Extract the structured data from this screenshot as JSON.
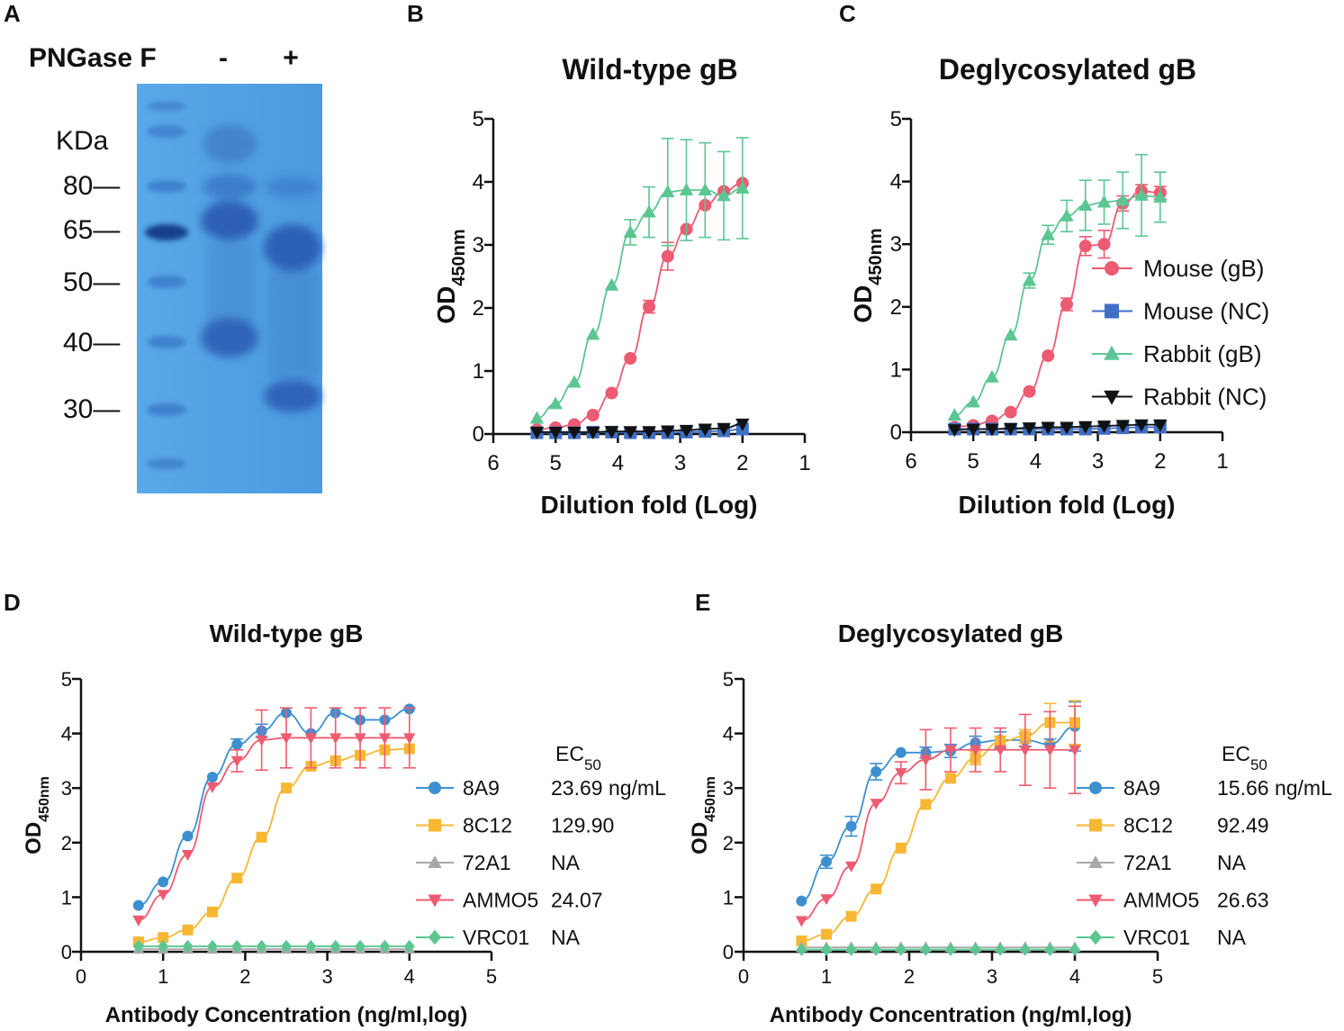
{
  "colors": {
    "mouse_gb": "#ec5b72",
    "mouse_nc": "#3f6fc4",
    "rabbit_gb": "#5cc693",
    "rabbit_nc": "#111111",
    "c8A9": "#3d8fcf",
    "c8C12": "#f7b733",
    "c72A1": "#a8a8a8",
    "cAMMO5": "#ee5b70",
    "cVRC01": "#5cc693",
    "gel_bg": "#4f9fe2"
  },
  "panels": {
    "A": {
      "letter": "A",
      "enzyme_label": "PNGase F",
      "lane_minus": "-",
      "lane_plus": "+",
      "unit": "KDa",
      "markers": [
        "80—",
        "65—",
        "50—",
        "40—",
        "30—"
      ]
    },
    "B": {
      "letter": "B"
    },
    "C": {
      "letter": "C"
    },
    "D": {
      "letter": "D",
      "ec50_header": "EC",
      "ec50_sub": "50"
    },
    "E": {
      "letter": "E",
      "ec50_header": "EC",
      "ec50_sub": "50"
    }
  },
  "legend_bc": [
    "Mouse (gB)",
    "Mouse (NC)",
    "Rabbit (gB)",
    "Rabbit (NC)"
  ],
  "legend_d": [
    {
      "name": "8A9",
      "ec50": "23.69 ng/mL"
    },
    {
      "name": "8C12",
      "ec50": "129.90"
    },
    {
      "name": "72A1",
      "ec50": "NA"
    },
    {
      "name": "AMMO5",
      "ec50": "24.07"
    },
    {
      "name": "VRC01",
      "ec50": "NA"
    }
  ],
  "legend_e": [
    {
      "name": "8A9",
      "ec50": "15.66 ng/mL"
    },
    {
      "name": "8C12",
      "ec50": "92.49"
    },
    {
      "name": "72A1",
      "ec50": "NA"
    },
    {
      "name": "AMMO5",
      "ec50": "26.63"
    },
    {
      "name": "VRC01",
      "ec50": "NA"
    }
  ],
  "chart_data": [
    {
      "panel": "B",
      "type": "line",
      "title": "Wild-type gB",
      "xlabel": "Dilution fold (Log)",
      "ylabel": "OD",
      "ylabel_sub": "450nm",
      "xlim": [
        6,
        1
      ],
      "ylim": [
        0,
        5
      ],
      "xticks": [
        6,
        5,
        4,
        3,
        2,
        1
      ],
      "yticks": [
        0,
        1,
        2,
        3,
        4,
        5
      ],
      "series": [
        {
          "name": "Mouse (gB)",
          "marker": "circle",
          "x": [
            5.3,
            5.0,
            4.7,
            4.4,
            4.1,
            3.8,
            3.5,
            3.2,
            2.9,
            2.6,
            2.3,
            2.0
          ],
          "y": [
            0.07,
            0.1,
            0.15,
            0.3,
            0.65,
            1.2,
            2.02,
            2.82,
            3.25,
            3.63,
            3.85,
            3.98
          ],
          "err": [
            0,
            0,
            0,
            0,
            0,
            0,
            0.1,
            0.22,
            0,
            0,
            0,
            0
          ]
        },
        {
          "name": "Mouse (NC)",
          "marker": "square",
          "x": [
            5.3,
            5.0,
            4.7,
            4.4,
            4.1,
            3.8,
            3.5,
            3.2,
            2.9,
            2.6,
            2.3,
            2.0
          ],
          "y": [
            0.02,
            0.02,
            0.02,
            0.03,
            0.03,
            0.02,
            0.02,
            0.02,
            0.03,
            0.04,
            0.05,
            0.08
          ],
          "err": [
            0,
            0,
            0,
            0,
            0,
            0,
            0,
            0,
            0,
            0,
            0,
            0
          ]
        },
        {
          "name": "Rabbit (gB)",
          "marker": "triangle-up",
          "x": [
            5.3,
            5.0,
            4.7,
            4.4,
            4.1,
            3.8,
            3.5,
            3.2,
            2.9,
            2.6,
            2.3,
            2.0
          ],
          "y": [
            0.25,
            0.48,
            0.82,
            1.58,
            2.36,
            3.2,
            3.52,
            3.84,
            3.87,
            3.87,
            3.78,
            3.9
          ],
          "err": [
            0,
            0,
            0,
            0,
            0,
            0.2,
            0.4,
            0.85,
            0.8,
            0.75,
            0.7,
            0.8
          ]
        },
        {
          "name": "Rabbit (NC)",
          "marker": "triangle-down",
          "x": [
            5.3,
            5.0,
            4.7,
            4.4,
            4.1,
            3.8,
            3.5,
            3.2,
            2.9,
            2.6,
            2.3,
            2.0
          ],
          "y": [
            0.03,
            0.03,
            0.03,
            0.03,
            0.04,
            0.04,
            0.04,
            0.05,
            0.06,
            0.08,
            0.09,
            0.16
          ],
          "err": [
            0,
            0,
            0,
            0,
            0,
            0,
            0,
            0,
            0,
            0,
            0,
            0
          ]
        }
      ]
    },
    {
      "panel": "C",
      "type": "line",
      "title": "Deglycosylated gB",
      "xlabel": "Dilution fold (Log)",
      "ylabel": "OD",
      "ylabel_sub": "450nm",
      "xlim": [
        6,
        1
      ],
      "ylim": [
        0,
        5
      ],
      "xticks": [
        6,
        5,
        4,
        3,
        2,
        1
      ],
      "yticks": [
        0,
        1,
        2,
        3,
        4,
        5
      ],
      "series": [
        {
          "name": "Mouse (gB)",
          "marker": "circle",
          "x": [
            5.3,
            5.0,
            4.7,
            4.4,
            4.1,
            3.8,
            3.5,
            3.2,
            2.9,
            2.6,
            2.3,
            2.0
          ],
          "y": [
            0.08,
            0.11,
            0.18,
            0.32,
            0.65,
            1.22,
            2.04,
            2.97,
            3.0,
            3.65,
            3.85,
            3.82
          ],
          "err": [
            0,
            0,
            0,
            0,
            0,
            0,
            0.1,
            0.15,
            0.22,
            0.12,
            0.1,
            0.1
          ]
        },
        {
          "name": "Mouse (NC)",
          "marker": "square",
          "x": [
            5.3,
            5.0,
            4.7,
            4.4,
            4.1,
            3.8,
            3.5,
            3.2,
            2.9,
            2.6,
            2.3,
            2.0
          ],
          "y": [
            0.05,
            0.05,
            0.05,
            0.05,
            0.05,
            0.05,
            0.05,
            0.05,
            0.06,
            0.07,
            0.08,
            0.08
          ],
          "err": [
            0,
            0,
            0,
            0,
            0,
            0,
            0,
            0,
            0,
            0,
            0,
            0
          ]
        },
        {
          "name": "Rabbit (gB)",
          "marker": "triangle-up",
          "x": [
            5.3,
            5.0,
            4.7,
            4.4,
            4.1,
            3.8,
            3.5,
            3.2,
            2.9,
            2.6,
            2.3,
            2.0
          ],
          "y": [
            0.27,
            0.48,
            0.88,
            1.55,
            2.42,
            3.15,
            3.45,
            3.62,
            3.67,
            3.7,
            3.78,
            3.75
          ],
          "err": [
            0,
            0,
            0,
            0,
            0.12,
            0.15,
            0.25,
            0.4,
            0.35,
            0.45,
            0.65,
            0.4
          ]
        },
        {
          "name": "Rabbit (NC)",
          "marker": "triangle-down",
          "x": [
            5.3,
            5.0,
            4.7,
            4.4,
            4.1,
            3.8,
            3.5,
            3.2,
            2.9,
            2.6,
            2.3,
            2.0
          ],
          "y": [
            0.04,
            0.05,
            0.05,
            0.06,
            0.07,
            0.08,
            0.08,
            0.09,
            0.1,
            0.11,
            0.12,
            0.12
          ],
          "err": [
            0,
            0,
            0,
            0,
            0,
            0,
            0,
            0,
            0,
            0,
            0,
            0
          ]
        }
      ]
    },
    {
      "panel": "D",
      "type": "line",
      "title": "Wild-type gB",
      "xlabel": "Antibody Concentration (ng/ml,log)",
      "ylabel": "OD",
      "ylabel_sub": "450nm",
      "xlim": [
        0,
        5
      ],
      "ylim": [
        0,
        5
      ],
      "xticks": [
        0,
        1,
        2,
        3,
        4,
        5
      ],
      "yticks": [
        0,
        1,
        2,
        3,
        4,
        5
      ],
      "series": [
        {
          "name": "8A9",
          "marker": "circle",
          "x": [
            0.7,
            1.0,
            1.3,
            1.6,
            1.9,
            2.2,
            2.5,
            2.8,
            3.1,
            3.4,
            3.7,
            4.0
          ],
          "y": [
            0.85,
            1.28,
            2.12,
            3.2,
            3.8,
            4.05,
            4.38,
            4.0,
            4.38,
            4.25,
            4.25,
            4.45
          ],
          "err": [
            0,
            0,
            0,
            0,
            0.1,
            0.12,
            0,
            0,
            0,
            0,
            0,
            0
          ]
        },
        {
          "name": "8C12",
          "marker": "square",
          "x": [
            0.7,
            1.0,
            1.3,
            1.6,
            1.9,
            2.2,
            2.5,
            2.8,
            3.1,
            3.4,
            3.7,
            4.0
          ],
          "y": [
            0.18,
            0.26,
            0.4,
            0.73,
            1.35,
            2.1,
            3.0,
            3.4,
            3.5,
            3.6,
            3.7,
            3.72
          ],
          "err": [
            0,
            0,
            0,
            0,
            0,
            0,
            0,
            0,
            0,
            0,
            0,
            0
          ]
        },
        {
          "name": "72A1",
          "marker": "triangle-up",
          "x": [
            0.7,
            1.0,
            1.3,
            1.6,
            1.9,
            2.2,
            2.5,
            2.8,
            3.1,
            3.4,
            3.7,
            4.0
          ],
          "y": [
            0.05,
            0.05,
            0.05,
            0.05,
            0.05,
            0.05,
            0.05,
            0.05,
            0.05,
            0.05,
            0.05,
            0.05
          ],
          "err": [
            0,
            0,
            0,
            0,
            0,
            0,
            0,
            0,
            0,
            0,
            0,
            0
          ]
        },
        {
          "name": "AMMO5",
          "marker": "triangle-down",
          "x": [
            0.7,
            1.0,
            1.3,
            1.6,
            1.9,
            2.2,
            2.5,
            2.8,
            3.1,
            3.4,
            3.7,
            4.0
          ],
          "y": [
            0.58,
            1.05,
            1.78,
            3.02,
            3.5,
            3.88,
            3.92,
            3.92,
            3.92,
            3.92,
            3.92,
            3.92
          ],
          "err": [
            0,
            0,
            0,
            0,
            0.2,
            0.55,
            0.55,
            0.55,
            0.55,
            0.55,
            0.55,
            0.55
          ]
        },
        {
          "name": "VRC01",
          "marker": "diamond",
          "x": [
            0.7,
            1.0,
            1.3,
            1.6,
            1.9,
            2.2,
            2.5,
            2.8,
            3.1,
            3.4,
            3.7,
            4.0
          ],
          "y": [
            0.1,
            0.1,
            0.1,
            0.1,
            0.1,
            0.1,
            0.1,
            0.1,
            0.1,
            0.1,
            0.1,
            0.1
          ],
          "err": [
            0,
            0,
            0,
            0,
            0,
            0,
            0,
            0,
            0,
            0,
            0,
            0
          ]
        }
      ]
    },
    {
      "panel": "E",
      "type": "line",
      "title": "Deglycosylated gB",
      "xlabel": "Antibody Concentration (ng/ml,log)",
      "ylabel": "OD",
      "ylabel_sub": "450nm",
      "xlim": [
        0,
        5
      ],
      "ylim": [
        0,
        5
      ],
      "xticks": [
        0,
        1,
        2,
        3,
        4,
        5
      ],
      "yticks": [
        0,
        1,
        2,
        3,
        4,
        5
      ],
      "series": [
        {
          "name": "8A9",
          "marker": "circle",
          "x": [
            0.7,
            1.0,
            1.3,
            1.6,
            1.9,
            2.2,
            2.5,
            2.8,
            3.1,
            3.4,
            3.7,
            4.0
          ],
          "y": [
            0.93,
            1.65,
            2.3,
            3.3,
            3.65,
            3.65,
            3.68,
            3.83,
            3.88,
            3.88,
            3.8,
            4.13
          ],
          "err": [
            0,
            0.12,
            0.18,
            0.15,
            0,
            0.1,
            0.12,
            0.12,
            0.15,
            0.12,
            0.1,
            0.45
          ]
        },
        {
          "name": "8C12",
          "marker": "square",
          "x": [
            0.7,
            1.0,
            1.3,
            1.6,
            1.9,
            2.2,
            2.5,
            2.8,
            3.1,
            3.4,
            3.7,
            4.0
          ],
          "y": [
            0.2,
            0.32,
            0.65,
            1.15,
            1.9,
            2.7,
            3.18,
            3.55,
            3.85,
            3.95,
            4.2,
            4.2
          ],
          "err": [
            0,
            0,
            0,
            0,
            0,
            0,
            0,
            0.12,
            0.1,
            0.12,
            0.35,
            0.4
          ]
        },
        {
          "name": "72A1",
          "marker": "triangle-up",
          "x": [
            0.7,
            1.0,
            1.3,
            1.6,
            1.9,
            2.2,
            2.5,
            2.8,
            3.1,
            3.4,
            3.7,
            4.0
          ],
          "y": [
            0.08,
            0.08,
            0.08,
            0.08,
            0.08,
            0.08,
            0.08,
            0.08,
            0.08,
            0.08,
            0.08,
            0.08
          ],
          "err": [
            0,
            0,
            0,
            0,
            0,
            0,
            0,
            0,
            0,
            0,
            0,
            0
          ]
        },
        {
          "name": "AMMO5",
          "marker": "triangle-down",
          "x": [
            0.7,
            1.0,
            1.3,
            1.6,
            1.9,
            2.2,
            2.5,
            2.8,
            3.1,
            3.4,
            3.7,
            4.0
          ],
          "y": [
            0.57,
            0.97,
            1.57,
            2.72,
            3.28,
            3.52,
            3.7,
            3.7,
            3.7,
            3.7,
            3.7,
            3.7
          ],
          "err": [
            0,
            0,
            0,
            0,
            0.2,
            0.55,
            0.4,
            0.4,
            0.4,
            0.65,
            0.7,
            0.8
          ]
        },
        {
          "name": "VRC01",
          "marker": "diamond",
          "x": [
            0.7,
            1.0,
            1.3,
            1.6,
            1.9,
            2.2,
            2.5,
            2.8,
            3.1,
            3.4,
            3.7,
            4.0
          ],
          "y": [
            0.04,
            0.04,
            0.04,
            0.04,
            0.04,
            0.04,
            0.04,
            0.04,
            0.04,
            0.04,
            0.04,
            0.04
          ],
          "err": [
            0,
            0,
            0,
            0,
            0,
            0,
            0,
            0,
            0,
            0,
            0,
            0
          ]
        }
      ]
    }
  ]
}
